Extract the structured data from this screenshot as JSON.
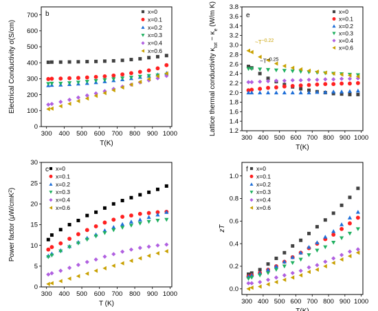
{
  "colors": {
    "x=0": "#000000",
    "x=0.1": "#ff2020",
    "x=0.2": "#1f6fd8",
    "x=0.3": "#20b060",
    "x=0.4": "#b060e0",
    "x=0.6": "#c8a000"
  },
  "chart_data": [
    {
      "id": "b",
      "type": "scatter",
      "panel_label": "b",
      "xlabel": "T(K)",
      "ylabel": "Electrical Conductivity σ(S/cm)",
      "xlim": [
        270,
        1010
      ],
      "ylim": [
        0,
        750
      ],
      "xticks": [
        300,
        400,
        500,
        600,
        700,
        800,
        900,
        1000
      ],
      "yticks": [
        0,
        100,
        200,
        300,
        400,
        500,
        600,
        700
      ],
      "legend_position": "top-right",
      "legend_style": "square-dark",
      "series": [
        {
          "name": "x=0",
          "marker": "square",
          "color": "#404040",
          "x": [
            310,
            330,
            380,
            430,
            480,
            530,
            580,
            630,
            680,
            730,
            780,
            830,
            880,
            930,
            980
          ],
          "y": [
            403,
            404,
            404,
            405,
            406,
            407,
            408,
            410,
            412,
            415,
            420,
            425,
            432,
            438,
            445
          ]
        },
        {
          "name": "x=0.1",
          "marker": "circle",
          "color": "#ff2020",
          "x": [
            310,
            330,
            380,
            430,
            480,
            530,
            580,
            630,
            680,
            730,
            780,
            830,
            880,
            930,
            980
          ],
          "y": [
            298,
            300,
            301,
            303,
            305,
            308,
            311,
            315,
            320,
            327,
            335,
            343,
            352,
            365,
            385
          ]
        },
        {
          "name": "x=0.2",
          "marker": "triangle-up",
          "color": "#1f6fd8",
          "x": [
            310,
            330,
            380,
            430,
            480,
            530,
            580,
            630,
            680,
            730,
            780,
            830,
            880,
            930,
            980
          ],
          "y": [
            258,
            260,
            262,
            265,
            268,
            272,
            277,
            283,
            289,
            295,
            302,
            310,
            318,
            326,
            335
          ]
        },
        {
          "name": "x=0.3",
          "marker": "triangle-down",
          "color": "#20b060",
          "x": [
            310,
            330,
            380,
            430,
            480,
            530,
            580,
            630,
            680,
            730,
            780,
            830,
            880,
            930,
            980
          ],
          "y": [
            268,
            270,
            270,
            273,
            277,
            282,
            287,
            292,
            298,
            303,
            308,
            313,
            318,
            322,
            325
          ]
        },
        {
          "name": "x=0.4",
          "marker": "diamond",
          "color": "#b060e0",
          "x": [
            310,
            330,
            380,
            430,
            480,
            530,
            580,
            630,
            680,
            730,
            780,
            830,
            880,
            930,
            980
          ],
          "y": [
            138,
            142,
            155,
            168,
            182,
            195,
            208,
            222,
            236,
            250,
            263,
            277,
            290,
            303,
            318
          ]
        },
        {
          "name": "x=0.6",
          "marker": "triangle-left",
          "color": "#c8a000",
          "x": [
            310,
            330,
            380,
            430,
            480,
            530,
            580,
            630,
            680,
            730,
            780,
            830,
            880,
            930,
            980
          ],
          "y": [
            110,
            113,
            128,
            143,
            160,
            176,
            193,
            210,
            228,
            245,
            263,
            280,
            298,
            316,
            333
          ]
        }
      ]
    },
    {
      "id": "e",
      "type": "scatter",
      "panel_label": "e",
      "xlabel": "T(K)",
      "ylabel": "Lattice thermal conductivity κ_tot − κ_e (W/m K)",
      "xlim": [
        270,
        1010
      ],
      "ylim": [
        1.2,
        3.8
      ],
      "xticks": [
        300,
        400,
        500,
        600,
        700,
        800,
        900,
        1000
      ],
      "yticks": [
        1.2,
        1.4,
        1.6,
        1.8,
        2.0,
        2.2,
        2.4,
        2.6,
        2.8,
        3.0,
        3.2,
        3.4,
        3.6,
        3.8
      ],
      "legend_position": "top-right",
      "legend_style": "square-dark",
      "annotations": [
        {
          "text": "~T",
          "sup": "−0.22",
          "color": "#c8a000",
          "at": [
            350,
            3.02
          ]
        },
        {
          "text": "~T",
          "sup": "−0.25",
          "color": "#000000",
          "at": [
            380,
            2.62
          ]
        }
      ],
      "series": [
        {
          "name": "x=0",
          "marker": "square",
          "color": "#404040",
          "x": [
            310,
            330,
            380,
            430,
            480,
            530,
            580,
            630,
            680,
            730,
            780,
            830,
            880,
            930,
            980
          ],
          "y": [
            2.55,
            2.52,
            2.4,
            2.3,
            2.23,
            2.17,
            2.12,
            2.08,
            2.05,
            2.02,
            2.0,
            1.98,
            1.97,
            1.96,
            1.96
          ]
        },
        {
          "name": "x=0.1",
          "marker": "circle",
          "color": "#ff2020",
          "x": [
            310,
            330,
            380,
            430,
            480,
            530,
            580,
            630,
            680,
            730,
            780,
            830,
            880,
            930,
            980
          ],
          "y": [
            2.05,
            2.06,
            2.08,
            2.1,
            2.11,
            2.13,
            2.14,
            2.15,
            2.16,
            2.17,
            2.18,
            2.18,
            2.19,
            2.19,
            2.2
          ]
        },
        {
          "name": "x=0.2",
          "marker": "triangle-up",
          "color": "#1f6fd8",
          "x": [
            310,
            330,
            380,
            430,
            480,
            530,
            580,
            630,
            680,
            730,
            780,
            830,
            880,
            930,
            980
          ],
          "y": [
            2.0,
            2.0,
            2.0,
            2.0,
            2.0,
            2.0,
            2.0,
            2.0,
            2.0,
            2.01,
            2.01,
            2.02,
            2.02,
            2.03,
            2.04
          ]
        },
        {
          "name": "x=0.3",
          "marker": "triangle-down",
          "color": "#20b060",
          "x": [
            310,
            330,
            380,
            430,
            480,
            530,
            580,
            630,
            680,
            730,
            780,
            830,
            880,
            930,
            980
          ],
          "y": [
            2.5,
            2.5,
            2.49,
            2.48,
            2.47,
            2.46,
            2.45,
            2.44,
            2.43,
            2.42,
            2.41,
            2.4,
            2.39,
            2.38,
            2.37
          ]
        },
        {
          "name": "x=0.4",
          "marker": "diamond",
          "color": "#b060e0",
          "x": [
            310,
            330,
            380,
            430,
            480,
            530,
            580,
            630,
            680,
            730,
            780,
            830,
            880,
            930,
            980
          ],
          "y": [
            2.22,
            2.22,
            2.23,
            2.24,
            2.25,
            2.25,
            2.26,
            2.26,
            2.27,
            2.27,
            2.28,
            2.28,
            2.29,
            2.29,
            2.3
          ]
        },
        {
          "name": "x=0.6",
          "marker": "triangle-left",
          "color": "#c8a000",
          "x": [
            310,
            330,
            380,
            430,
            480,
            530,
            580,
            630,
            680,
            730,
            780,
            830,
            880,
            930,
            980
          ],
          "y": [
            2.88,
            2.85,
            2.75,
            2.68,
            2.61,
            2.56,
            2.52,
            2.49,
            2.46,
            2.44,
            2.42,
            2.4,
            2.38,
            2.36,
            2.34
          ]
        }
      ]
    },
    {
      "id": "c",
      "type": "scatter",
      "panel_label": "c",
      "xlabel": "T (K)",
      "ylabel": "Power factor (μW/cmK²)",
      "xlim": [
        270,
        1010
      ],
      "ylim": [
        0,
        30
      ],
      "xticks": [
        300,
        400,
        500,
        600,
        700,
        800,
        900,
        1000
      ],
      "yticks": [
        0,
        5,
        10,
        15,
        20,
        25,
        30
      ],
      "legend_position": "top-left",
      "legend_style": "plain",
      "series": [
        {
          "name": "x=0",
          "marker": "square",
          "color": "#000000",
          "x": [
            310,
            330,
            380,
            430,
            480,
            530,
            580,
            630,
            680,
            730,
            780,
            830,
            880,
            930,
            980
          ],
          "y": [
            11.4,
            12.5,
            13.8,
            15.0,
            16.0,
            17.2,
            18.0,
            19.0,
            20.0,
            20.8,
            21.5,
            22.2,
            22.8,
            23.5,
            24.3
          ]
        },
        {
          "name": "x=0.1",
          "marker": "circle",
          "color": "#ff2020",
          "x": [
            310,
            330,
            380,
            430,
            480,
            530,
            580,
            630,
            680,
            730,
            780,
            830,
            880,
            930,
            980
          ],
          "y": [
            9.0,
            9.6,
            10.5,
            11.6,
            12.7,
            13.7,
            14.6,
            15.5,
            16.2,
            16.9,
            17.2,
            17.6,
            17.8,
            18.0,
            18.1
          ]
        },
        {
          "name": "x=0.2",
          "marker": "triangle-up",
          "color": "#1f6fd8",
          "x": [
            310,
            330,
            380,
            430,
            480,
            530,
            580,
            630,
            680,
            730,
            780,
            830,
            880,
            930,
            980
          ],
          "y": [
            7.5,
            8.0,
            8.8,
            9.8,
            10.8,
            11.8,
            12.6,
            13.6,
            14.4,
            15.1,
            15.7,
            16.2,
            16.8,
            17.4,
            18.0
          ]
        },
        {
          "name": "x=0.3",
          "marker": "triangle-down",
          "color": "#20b060",
          "x": [
            310,
            330,
            380,
            430,
            480,
            530,
            580,
            630,
            680,
            730,
            780,
            830,
            880,
            930,
            980
          ],
          "y": [
            7.2,
            7.6,
            8.6,
            9.6,
            10.5,
            11.4,
            12.2,
            13.0,
            13.7,
            14.3,
            14.8,
            15.3,
            15.7,
            16.0,
            16.2
          ]
        },
        {
          "name": "x=0.4",
          "marker": "diamond",
          "color": "#b060e0",
          "x": [
            310,
            330,
            380,
            430,
            480,
            530,
            580,
            630,
            680,
            730,
            780,
            830,
            880,
            930,
            980
          ],
          "y": [
            3.0,
            3.3,
            3.9,
            4.6,
            5.3,
            6.0,
            6.6,
            7.3,
            7.9,
            8.5,
            9.0,
            9.4,
            9.7,
            10.0,
            10.2
          ]
        },
        {
          "name": "x=0.6",
          "marker": "triangle-left",
          "color": "#c8a000",
          "x": [
            310,
            330,
            380,
            430,
            480,
            530,
            580,
            630,
            680,
            730,
            780,
            830,
            880,
            930,
            980
          ],
          "y": [
            0.7,
            0.9,
            1.4,
            2.0,
            2.6,
            3.2,
            3.9,
            4.5,
            5.1,
            5.7,
            6.3,
            6.9,
            7.5,
            8.1,
            8.6
          ]
        }
      ]
    },
    {
      "id": "f",
      "type": "scatter",
      "panel_label": "f",
      "xlabel": "T(K)",
      "ylabel": "zT",
      "xlim": [
        270,
        1010
      ],
      "ylim": [
        -0.05,
        1.12
      ],
      "xticks": [
        300,
        400,
        500,
        600,
        700,
        800,
        900,
        1000
      ],
      "yticks": [
        0.0,
        0.2,
        0.4,
        0.6,
        0.8,
        1.0
      ],
      "legend_position": "top-left",
      "legend_style": "square-dark",
      "series": [
        {
          "name": "x=0",
          "marker": "square",
          "color": "#404040",
          "x": [
            310,
            330,
            380,
            430,
            480,
            530,
            580,
            630,
            680,
            730,
            780,
            830,
            880,
            930,
            980
          ],
          "y": [
            0.13,
            0.14,
            0.17,
            0.22,
            0.27,
            0.32,
            0.38,
            0.43,
            0.49,
            0.55,
            0.61,
            0.67,
            0.74,
            0.81,
            0.89
          ]
        },
        {
          "name": "x=0.1",
          "marker": "circle",
          "color": "#ff2020",
          "x": [
            310,
            330,
            380,
            430,
            480,
            530,
            580,
            630,
            680,
            730,
            780,
            830,
            880,
            930,
            980
          ],
          "y": [
            0.11,
            0.12,
            0.14,
            0.17,
            0.2,
            0.24,
            0.28,
            0.32,
            0.36,
            0.4,
            0.44,
            0.48,
            0.53,
            0.58,
            0.63
          ]
        },
        {
          "name": "x=0.2",
          "marker": "triangle-up",
          "color": "#1f6fd8",
          "x": [
            310,
            330,
            380,
            430,
            480,
            530,
            580,
            630,
            680,
            730,
            780,
            830,
            880,
            930,
            980
          ],
          "y": [
            0.11,
            0.12,
            0.14,
            0.17,
            0.2,
            0.24,
            0.28,
            0.32,
            0.37,
            0.41,
            0.46,
            0.51,
            0.57,
            0.63,
            0.68
          ]
        },
        {
          "name": "x=0.3",
          "marker": "triangle-down",
          "color": "#20b060",
          "x": [
            310,
            330,
            380,
            430,
            480,
            530,
            580,
            630,
            680,
            730,
            780,
            830,
            880,
            930,
            980
          ],
          "y": [
            0.09,
            0.1,
            0.12,
            0.14,
            0.17,
            0.2,
            0.23,
            0.26,
            0.3,
            0.34,
            0.37,
            0.41,
            0.45,
            0.49,
            0.53
          ]
        },
        {
          "name": "x=0.4",
          "marker": "diamond",
          "color": "#b060e0",
          "x": [
            310,
            330,
            380,
            430,
            480,
            530,
            580,
            630,
            680,
            730,
            780,
            830,
            880,
            930,
            980
          ],
          "y": [
            0.05,
            0.05,
            0.06,
            0.08,
            0.1,
            0.12,
            0.14,
            0.16,
            0.19,
            0.21,
            0.24,
            0.27,
            0.3,
            0.33,
            0.35
          ]
        },
        {
          "name": "x=0.6",
          "marker": "triangle-left",
          "color": "#c8a000",
          "x": [
            310,
            330,
            380,
            430,
            480,
            530,
            580,
            630,
            680,
            730,
            780,
            830,
            880,
            930,
            980
          ],
          "y": [
            0.0,
            0.01,
            0.02,
            0.04,
            0.06,
            0.08,
            0.1,
            0.12,
            0.15,
            0.17,
            0.2,
            0.23,
            0.26,
            0.29,
            0.32
          ]
        }
      ]
    }
  ]
}
